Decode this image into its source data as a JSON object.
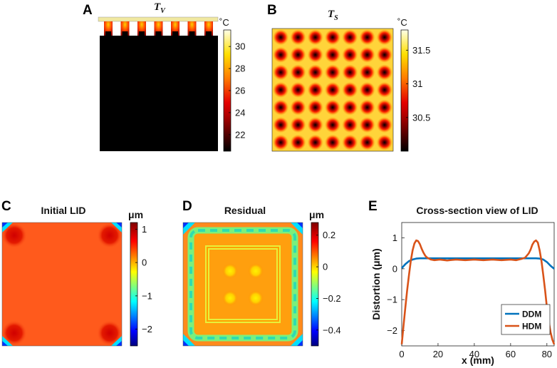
{
  "panels": {
    "A": {
      "label": "A",
      "title_main": "T",
      "title_sub": "V",
      "unit": "˚C"
    },
    "B": {
      "label": "B",
      "title_main": "T",
      "title_sub": "S",
      "unit": "˚C"
    },
    "C": {
      "label": "C",
      "title": "Initial LID",
      "unit": "μm"
    },
    "D": {
      "label": "D",
      "title": "Residual",
      "unit": "μm"
    },
    "E": {
      "label": "E",
      "title": "Cross-section view of LID"
    }
  },
  "colors": {
    "ddm": "#0072BD",
    "hdm": "#D95319"
  },
  "chart_data": [
    {
      "panel": "A",
      "type": "heatmap",
      "title": "T_V",
      "colorbar_label": "˚C",
      "clim": [
        20.5,
        31.5
      ],
      "ticks": [
        "30",
        "28",
        "26",
        "24",
        "22"
      ],
      "tick_values": [
        30,
        28,
        26,
        24,
        22
      ],
      "heaters": 7
    },
    {
      "panel": "B",
      "type": "heatmap",
      "title": "T_S",
      "colorbar_label": "˚C",
      "clim": [
        30.0,
        31.8
      ],
      "ticks": [
        "31.5",
        "31",
        "30.5"
      ],
      "tick_values": [
        31.5,
        31,
        30.5
      ],
      "grid": [
        7,
        7
      ]
    },
    {
      "panel": "C",
      "type": "heatmap",
      "title": "Initial LID",
      "colorbar_label": "μm",
      "clim": [
        -2.5,
        1.2
      ],
      "ticks": [
        "1",
        "0",
        "−1",
        "−2"
      ],
      "tick_values": [
        1,
        0,
        -1,
        -2
      ]
    },
    {
      "panel": "D",
      "type": "heatmap",
      "title": "Residual",
      "colorbar_label": "μm",
      "clim": [
        -0.5,
        0.28
      ],
      "ticks": [
        "0.2",
        "0",
        "−0.2",
        "−0.4"
      ],
      "tick_values": [
        0.2,
        0,
        -0.2,
        -0.4
      ]
    },
    {
      "panel": "E",
      "type": "line",
      "title": "Cross-section view of LID",
      "xlabel": "x (mm)",
      "ylabel": "Distortion (μm)",
      "xlim": [
        0,
        84
      ],
      "ylim": [
        -2.5,
        1.5
      ],
      "xticks": [
        0,
        20,
        40,
        60,
        80
      ],
      "xtick_labels": [
        "0",
        "20",
        "40",
        "60",
        "80"
      ],
      "yticks": [
        1,
        0,
        -1,
        -2
      ],
      "ytick_labels": [
        "1",
        "0",
        "−1",
        "−2"
      ],
      "series": [
        {
          "name": "DDM",
          "x": [
            0,
            2,
            4,
            6,
            8,
            10,
            20,
            30,
            42,
            54,
            64,
            74,
            76,
            78,
            80,
            82,
            84
          ],
          "y": [
            0.02,
            0.15,
            0.25,
            0.3,
            0.33,
            0.34,
            0.34,
            0.34,
            0.34,
            0.34,
            0.34,
            0.34,
            0.33,
            0.3,
            0.22,
            0.1,
            0.0
          ]
        },
        {
          "name": "HDM",
          "x": [
            0,
            1,
            2,
            3,
            4,
            5,
            6,
            7,
            8,
            9,
            10,
            11,
            12,
            13,
            14,
            16,
            18,
            21,
            25,
            30,
            35,
            40,
            45,
            50,
            55,
            60,
            63,
            66,
            68,
            70,
            71,
            72,
            73,
            74,
            75,
            76,
            77,
            78,
            79,
            80,
            81,
            82,
            83,
            84
          ],
          "y": [
            -2.45,
            -1.85,
            -1.25,
            -0.7,
            -0.2,
            0.25,
            0.6,
            0.82,
            0.92,
            0.9,
            0.8,
            0.65,
            0.52,
            0.42,
            0.36,
            0.3,
            0.28,
            0.3,
            0.27,
            0.3,
            0.28,
            0.3,
            0.28,
            0.3,
            0.28,
            0.3,
            0.28,
            0.32,
            0.36,
            0.5,
            0.62,
            0.78,
            0.88,
            0.92,
            0.85,
            0.6,
            0.25,
            -0.2,
            -0.7,
            -1.25,
            -1.7,
            -2.05,
            -2.3,
            -2.45
          ]
        }
      ],
      "legend": [
        "DDM",
        "HDM"
      ],
      "legend_loc": "lower-right"
    }
  ]
}
